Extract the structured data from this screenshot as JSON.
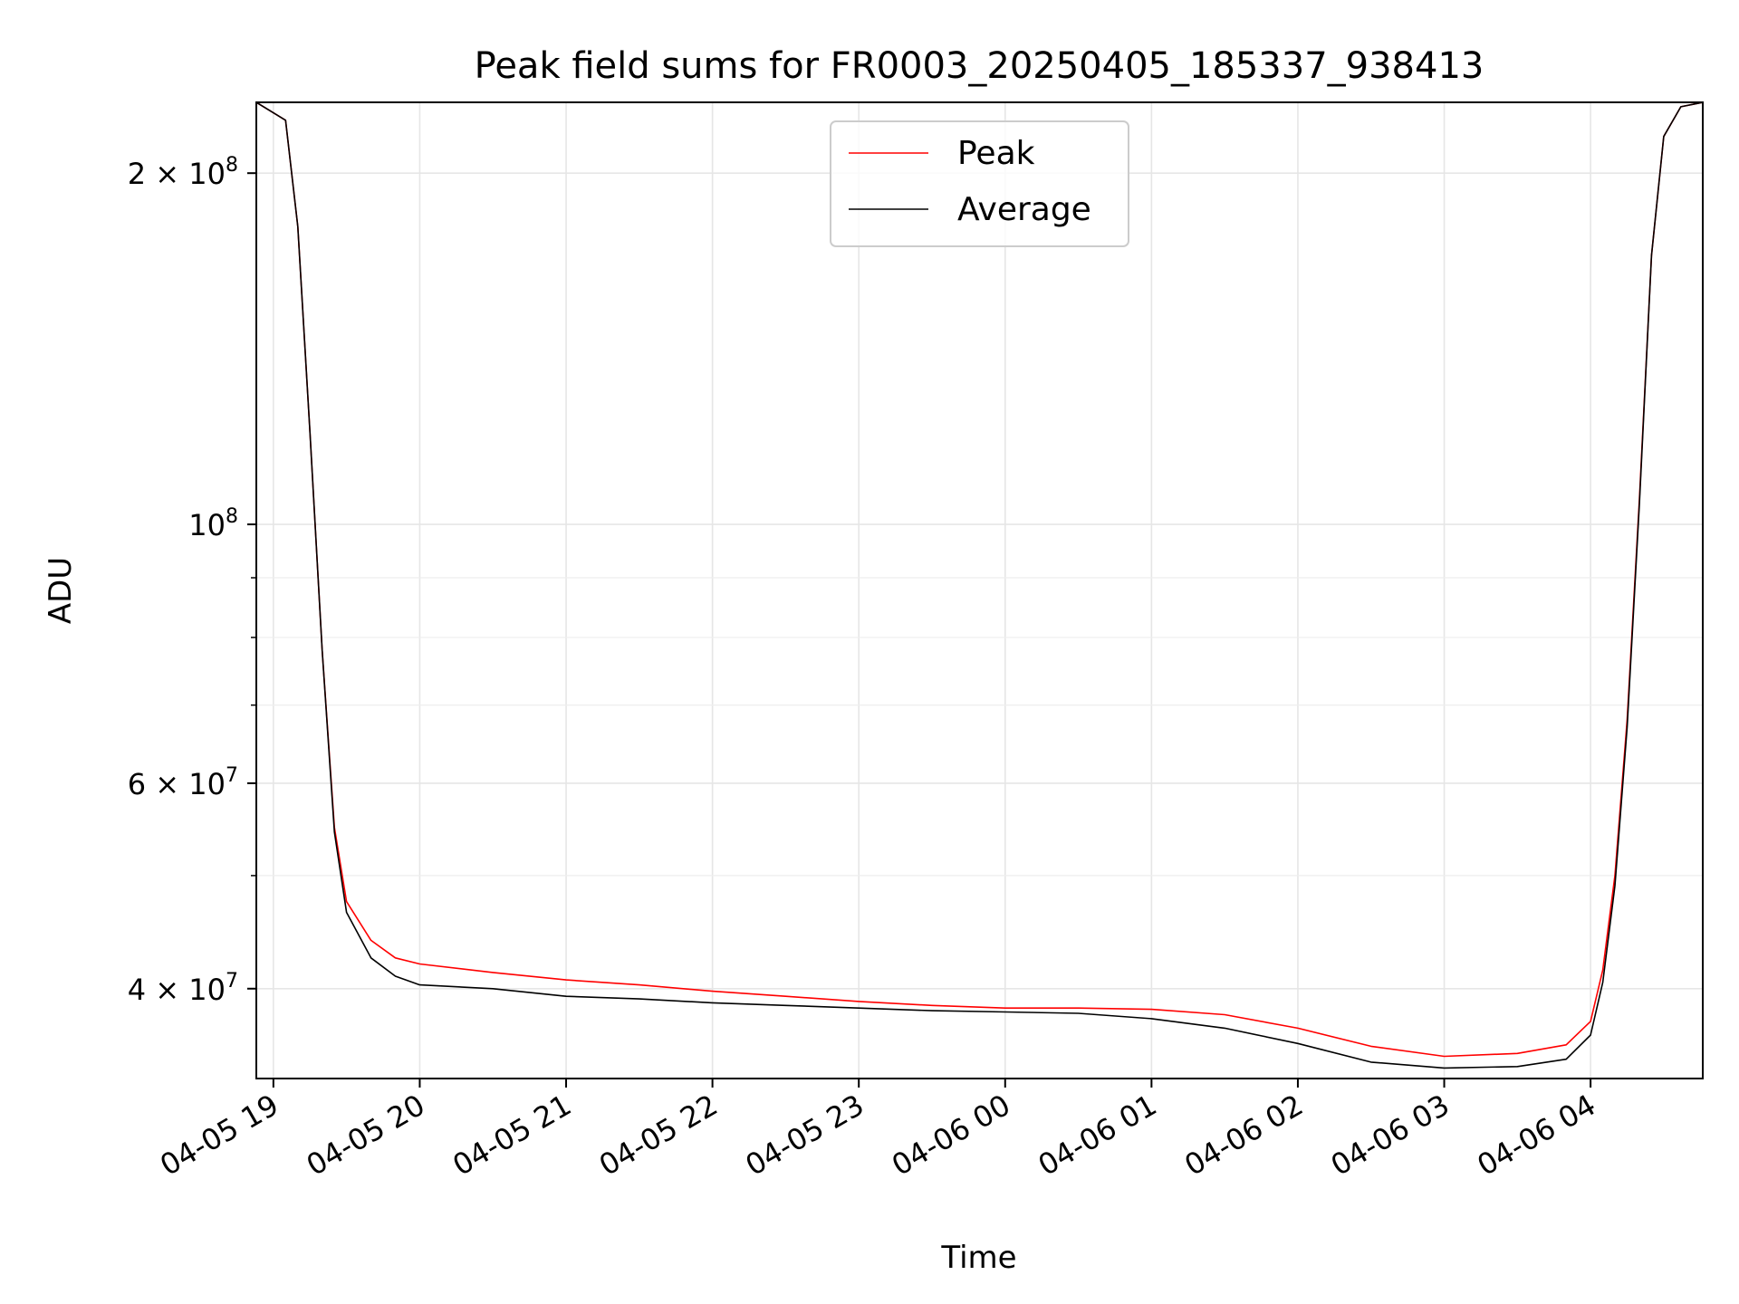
{
  "chart_data": {
    "type": "line",
    "title": "Peak field sums for FR0003_20250405_185337_938413",
    "xlabel": "Time",
    "ylabel": "ADU",
    "yscale": "log",
    "xlim": [
      "2025-04-05 18:53",
      "2025-04-06 04:46"
    ],
    "ylim": [
      33500000,
      230000000
    ],
    "grid": true,
    "legend_position": "top-center",
    "x_ticks": [
      {
        "t": "2025-04-05 19:00",
        "label": "04-05 19"
      },
      {
        "t": "2025-04-05 20:00",
        "label": "04-05 20"
      },
      {
        "t": "2025-04-05 21:00",
        "label": "04-05 21"
      },
      {
        "t": "2025-04-05 22:00",
        "label": "04-05 22"
      },
      {
        "t": "2025-04-05 23:00",
        "label": "04-05 23"
      },
      {
        "t": "2025-04-06 00:00",
        "label": "04-06 00"
      },
      {
        "t": "2025-04-06 01:00",
        "label": "04-06 01"
      },
      {
        "t": "2025-04-06 02:00",
        "label": "04-06 02"
      },
      {
        "t": "2025-04-06 03:00",
        "label": "04-06 03"
      },
      {
        "t": "2025-04-06 04:00",
        "label": "04-06 04"
      }
    ],
    "y_ticks": [
      {
        "value": 40000000,
        "base": "4",
        "exp": "7"
      },
      {
        "value": 60000000,
        "base": "6",
        "exp": "7"
      },
      {
        "value": 100000000,
        "base": "",
        "exp": "8"
      },
      {
        "value": 200000000,
        "base": "2",
        "exp": "8"
      }
    ],
    "y_minor_ticks": [
      50000000,
      70000000,
      80000000,
      90000000
    ],
    "series": [
      {
        "name": "Peak",
        "color": "#ff0000",
        "x": [
          "2025-04-05 18:53",
          "2025-04-05 19:05",
          "2025-04-05 19:10",
          "2025-04-05 19:15",
          "2025-04-05 19:20",
          "2025-04-05 19:25",
          "2025-04-05 19:30",
          "2025-04-05 19:40",
          "2025-04-05 19:50",
          "2025-04-05 20:00",
          "2025-04-05 20:30",
          "2025-04-05 21:00",
          "2025-04-05 21:30",
          "2025-04-05 22:00",
          "2025-04-05 22:30",
          "2025-04-05 23:00",
          "2025-04-05 23:30",
          "2025-04-06 00:00",
          "2025-04-06 00:30",
          "2025-04-06 01:00",
          "2025-04-06 01:30",
          "2025-04-06 02:00",
          "2025-04-06 02:30",
          "2025-04-06 03:00",
          "2025-04-06 03:30",
          "2025-04-06 03:50",
          "2025-04-06 04:00",
          "2025-04-06 04:05",
          "2025-04-06 04:10",
          "2025-04-06 04:15",
          "2025-04-06 04:20",
          "2025-04-06 04:25",
          "2025-04-06 04:30",
          "2025-04-06 04:37",
          "2025-04-06 04:46"
        ],
        "values": [
          230000000,
          222000000,
          180000000,
          120000000,
          78000000,
          55000000,
          47500000,
          44000000,
          42500000,
          42000000,
          41300000,
          40700000,
          40300000,
          39800000,
          39400000,
          39000000,
          38700000,
          38500000,
          38500000,
          38400000,
          38000000,
          37000000,
          35700000,
          35000000,
          35200000,
          35800000,
          37500000,
          41500000,
          50000000,
          68000000,
          105000000,
          170000000,
          215000000,
          228000000,
          230000000
        ]
      },
      {
        "name": "Average",
        "color": "#000000",
        "x": [
          "2025-04-05 18:53",
          "2025-04-05 19:05",
          "2025-04-05 19:10",
          "2025-04-05 19:15",
          "2025-04-05 19:20",
          "2025-04-05 19:25",
          "2025-04-05 19:30",
          "2025-04-05 19:40",
          "2025-04-05 19:50",
          "2025-04-05 20:00",
          "2025-04-05 20:30",
          "2025-04-05 21:00",
          "2025-04-05 21:30",
          "2025-04-05 22:00",
          "2025-04-05 22:30",
          "2025-04-05 23:00",
          "2025-04-05 23:30",
          "2025-04-06 00:00",
          "2025-04-06 00:30",
          "2025-04-06 01:00",
          "2025-04-06 01:30",
          "2025-04-06 02:00",
          "2025-04-06 02:30",
          "2025-04-06 03:00",
          "2025-04-06 03:30",
          "2025-04-06 03:50",
          "2025-04-06 04:00",
          "2025-04-06 04:05",
          "2025-04-06 04:10",
          "2025-04-06 04:15",
          "2025-04-06 04:20",
          "2025-04-06 04:25",
          "2025-04-06 04:30",
          "2025-04-06 04:37",
          "2025-04-06 04:46"
        ],
        "values": [
          230000000,
          222000000,
          180000000,
          120000000,
          78000000,
          54500000,
          46500000,
          42500000,
          41000000,
          40300000,
          40000000,
          39400000,
          39200000,
          38900000,
          38700000,
          38500000,
          38300000,
          38200000,
          38100000,
          37700000,
          37000000,
          35900000,
          34600000,
          34200000,
          34300000,
          34800000,
          36500000,
          40500000,
          49000000,
          67000000,
          104000000,
          170000000,
          215000000,
          228000000,
          230000000
        ]
      }
    ]
  }
}
